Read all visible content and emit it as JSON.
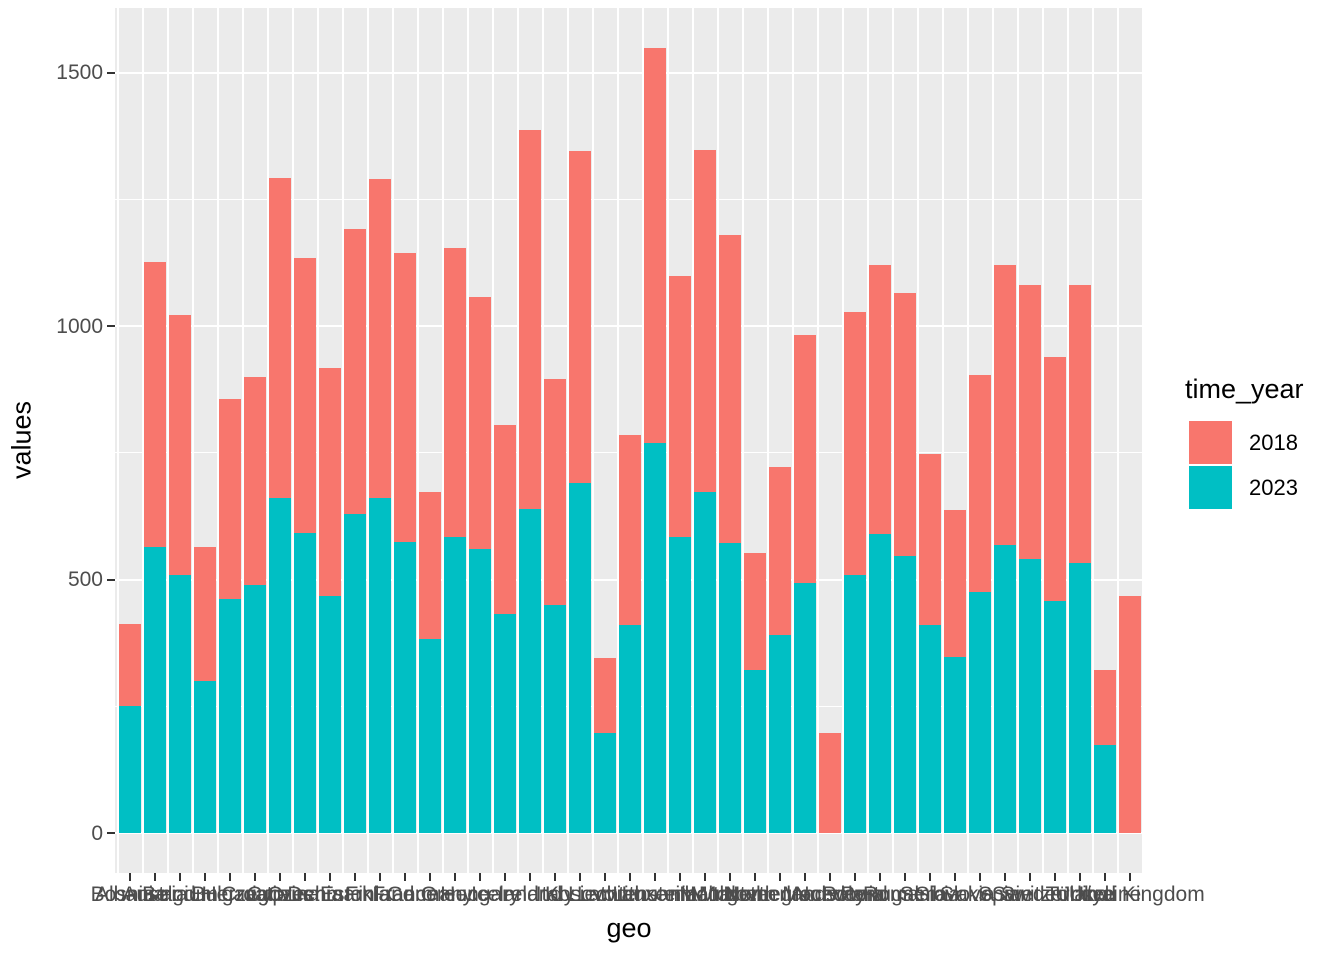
{
  "chart_data": {
    "type": "bar",
    "stacked": true,
    "title": "",
    "xlabel": "geo",
    "ylabel": "values",
    "legend_title": "time_year",
    "legend_position": "right",
    "grid": true,
    "panel_bg": "#EBEBEB",
    "grid_color": "#FFFFFF",
    "axis_text_color": "#4D4D4D",
    "tick_color": "#333333",
    "y_ticks": [
      0,
      500,
      1000,
      1500
    ],
    "y_minor_ticks": [
      250,
      750,
      1250
    ],
    "ylim": [
      0,
      1630
    ],
    "stack_order_bottom_to_top": [
      "2023",
      "2018"
    ],
    "categories": [
      "Albania",
      "Austria",
      "Belgium",
      "Bosnia and Herzegovina",
      "Bulgaria",
      "Croatia",
      "Cyprus",
      "Czechia",
      "Denmark",
      "Estonia",
      "Finland",
      "France",
      "Germany",
      "Greece",
      "Hungary",
      "Iceland",
      "Ireland",
      "Italy",
      "Kosovo",
      "Latvia",
      "Liechtenstein",
      "Lithuania",
      "Luxembourg",
      "Malta",
      "Moldova",
      "Montenegro",
      "Netherlands",
      "North Macedonia",
      "Norway",
      "Poland",
      "Portugal",
      "Romania",
      "Serbia",
      "Slovakia",
      "Slovenia",
      "Spain",
      "Sweden",
      "Switzerland",
      "Türkiye",
      "Ukraine",
      "United Kingdom"
    ],
    "series": [
      {
        "name": "2018",
        "color": "#F8766D",
        "values": [
          162,
          562,
          512,
          265,
          395,
          410,
          630,
          542,
          450,
          562,
          628,
          570,
          290,
          570,
          497,
          373,
          748,
          446,
          655,
          147,
          375,
          780,
          515,
          675,
          608,
          230,
          333,
          488,
          198,
          518,
          530,
          518,
          338,
          290,
          429,
          553,
          542,
          482,
          550,
          149,
          467
        ]
      },
      {
        "name": "2023",
        "color": "#00BFC4",
        "values": [
          250,
          565,
          510,
          300,
          462,
          490,
          662,
          592,
          468,
          630,
          662,
          575,
          382,
          585,
          560,
          432,
          640,
          450,
          690,
          198,
          410,
          770,
          585,
          672,
          573,
          322,
          390,
          494,
          null,
          510,
          590,
          547,
          410,
          347,
          475,
          568,
          540,
          458,
          532,
          173,
          null
        ]
      }
    ]
  }
}
